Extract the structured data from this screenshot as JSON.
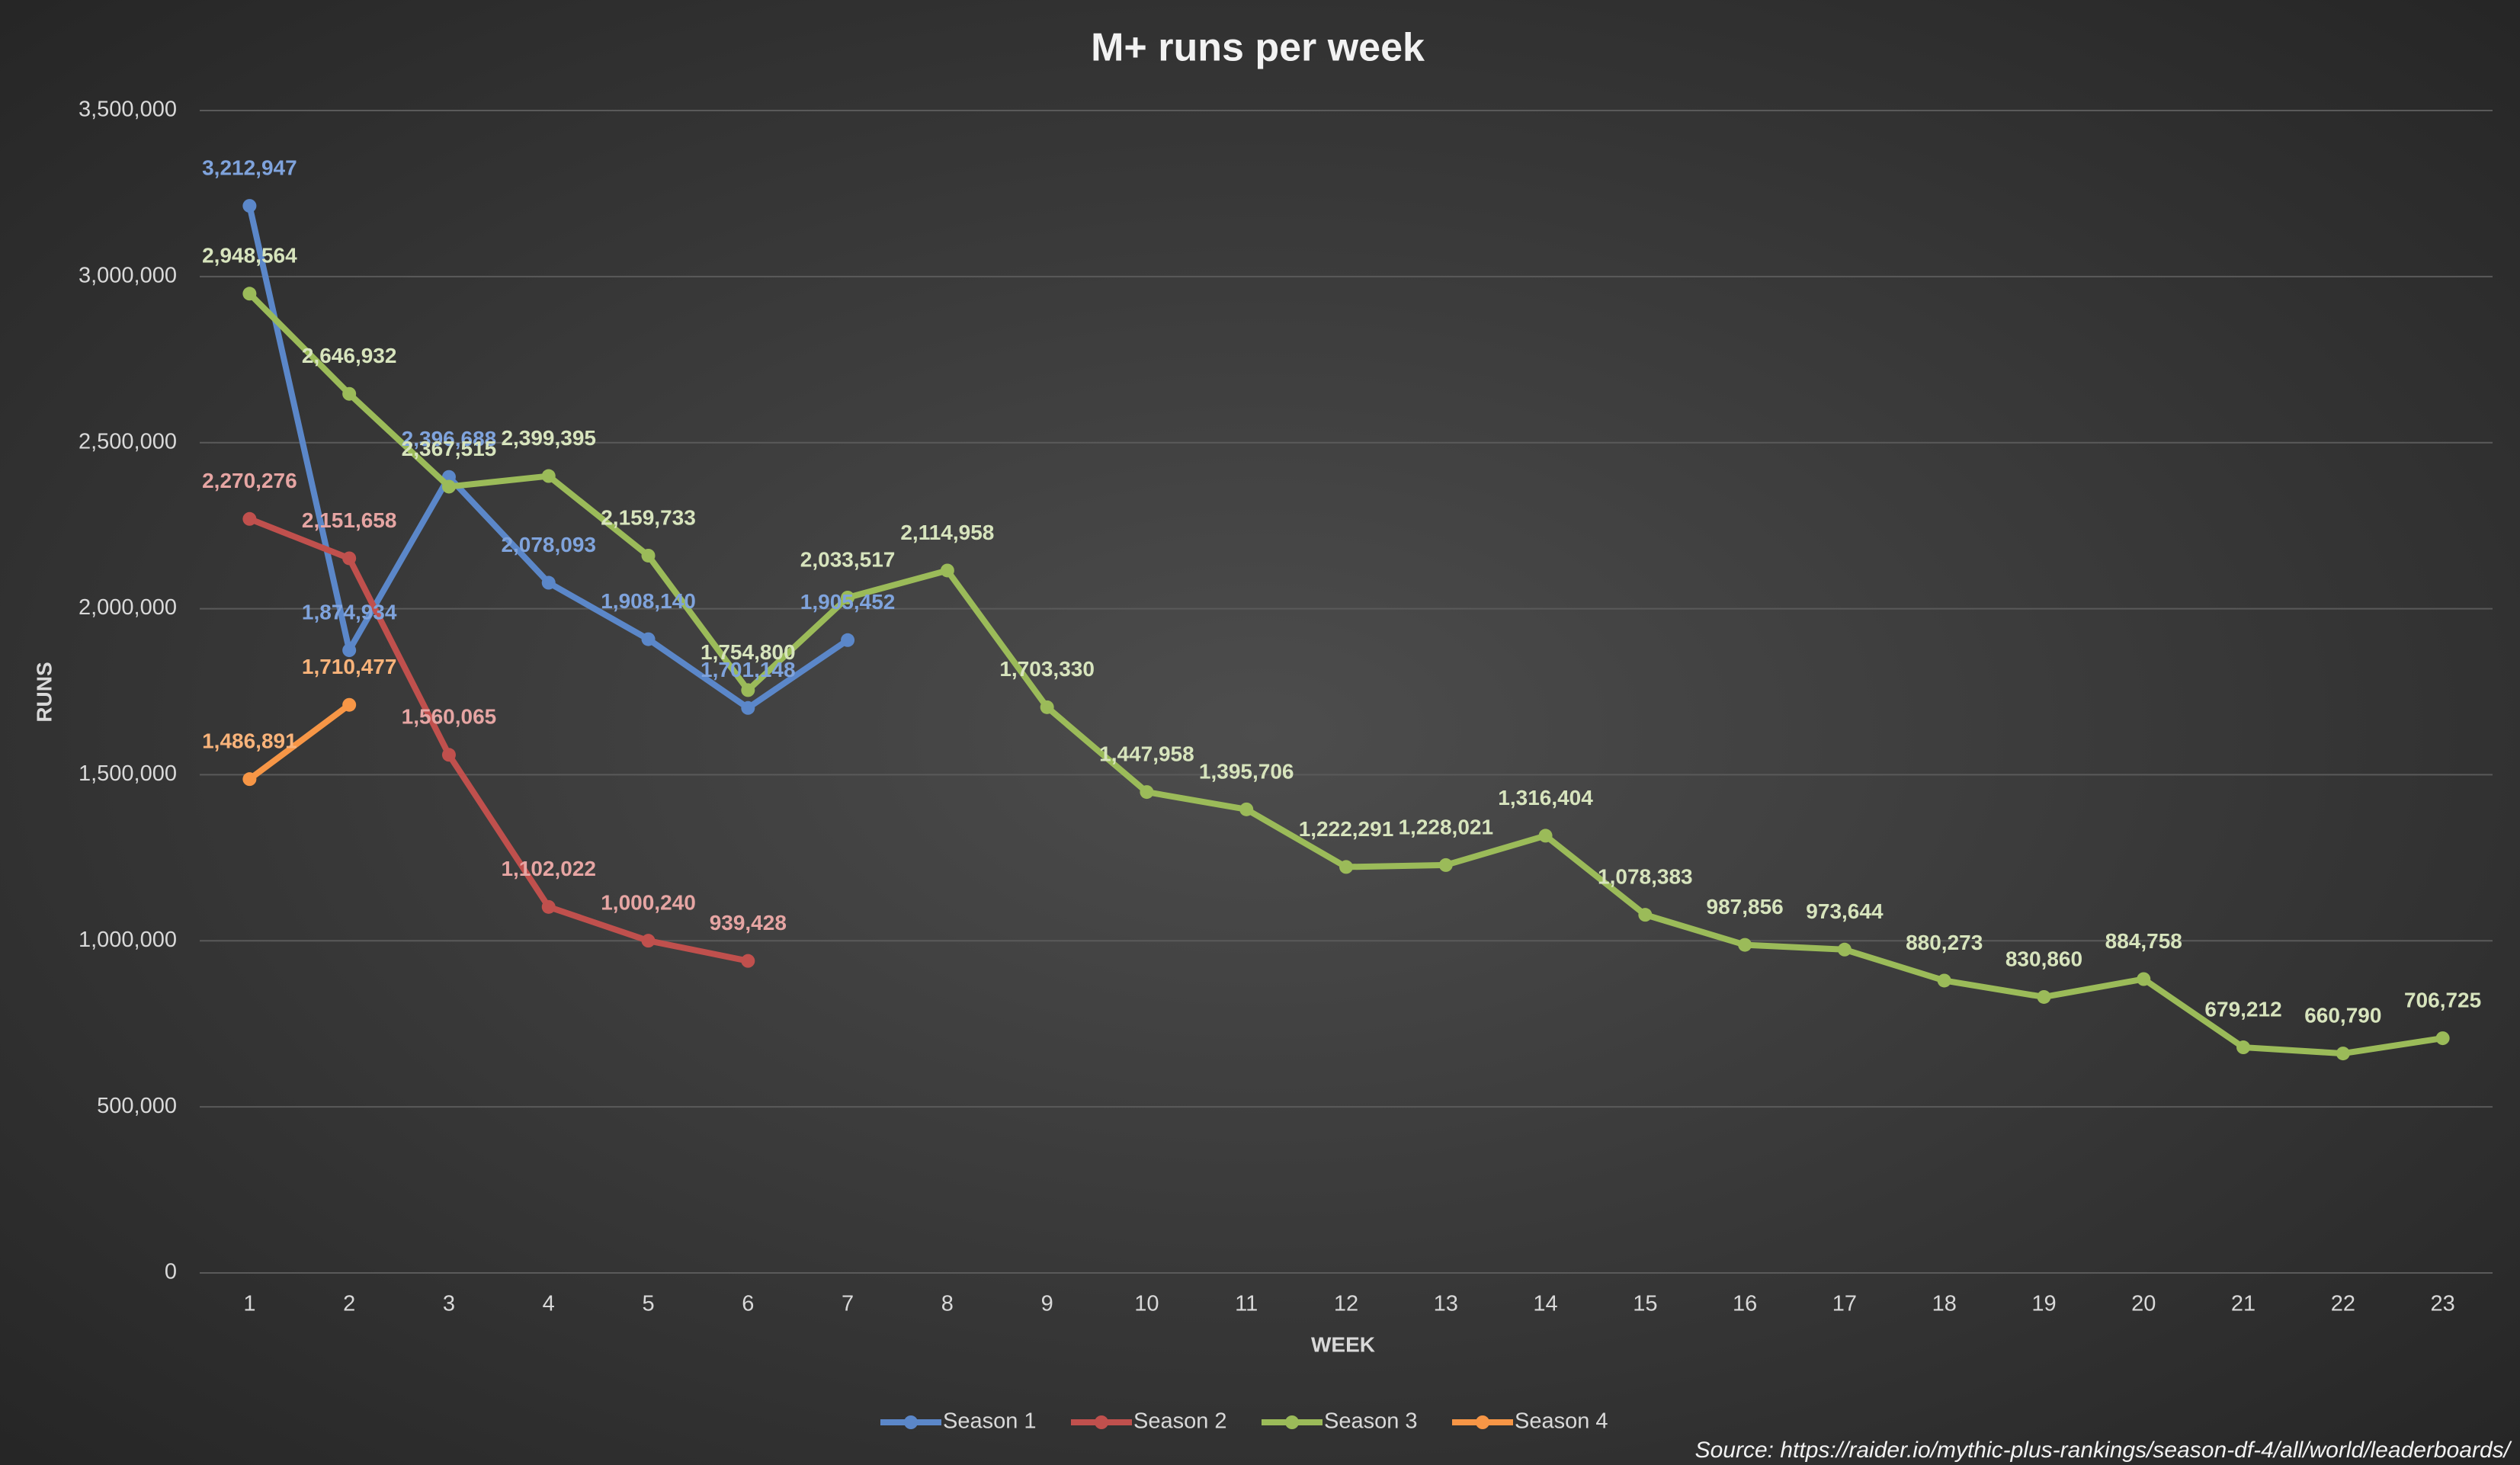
{
  "chart_data": {
    "type": "line",
    "title": "M+ runs per week",
    "x_label": "WEEK",
    "y_label": "RUNS",
    "source": "Source: https://raider.io/mythic-plus-rankings/season-df-4/all/world/leaderboards/",
    "categories": [
      "1",
      "2",
      "3",
      "4",
      "5",
      "6",
      "7",
      "8",
      "9",
      "10",
      "11",
      "12",
      "13",
      "14",
      "15",
      "16",
      "17",
      "18",
      "19",
      "20",
      "21",
      "22",
      "23"
    ],
    "ylim": [
      0,
      3500000
    ],
    "yticks": [
      0,
      {
        "value": 500000,
        "label": "500,000"
      },
      {
        "value": 1000000,
        "label": "1,000,000"
      },
      {
        "value": 1500000,
        "label": "1,500,000"
      },
      {
        "value": 2000000,
        "label": "2,000,000"
      },
      {
        "value": 2500000,
        "label": "2,500,000"
      },
      {
        "value": 3000000,
        "label": "3,000,000"
      },
      {
        "value": 3500000,
        "label": "3,500,000"
      }
    ],
    "grid": true,
    "legend": "bottom",
    "series": [
      {
        "name": "Season 1",
        "color": "#5b87c9",
        "label_color": "#7fa3dc",
        "values": [
          3212947,
          1874934,
          2396688,
          2078093,
          1908140,
          1701148,
          1905452,
          null,
          null,
          null,
          null,
          null,
          null,
          null,
          null,
          null,
          null,
          null,
          null,
          null,
          null,
          null,
          null
        ],
        "value_labels": [
          "3,212,947",
          "1,874,934",
          "2,396,688",
          "2,078,093",
          "1,908,140",
          "1,701,148",
          "1,905,452",
          null,
          null,
          null,
          null,
          null,
          null,
          null,
          null,
          null,
          null,
          null,
          null,
          null,
          null,
          null,
          null
        ]
      },
      {
        "name": "Season 2",
        "color": "#c0504d",
        "label_color": "#e6a5a3",
        "values": [
          2270276,
          2151658,
          1560065,
          1102022,
          1000240,
          939428,
          null,
          null,
          null,
          null,
          null,
          null,
          null,
          null,
          null,
          null,
          null,
          null,
          null,
          null,
          null,
          null,
          null
        ],
        "value_labels": [
          "2,270,276",
          "2,151,658",
          "1,560,065",
          "1,102,022",
          "1,000,240",
          "939,428",
          null,
          null,
          null,
          null,
          null,
          null,
          null,
          null,
          null,
          null,
          null,
          null,
          null,
          null,
          null,
          null,
          null
        ]
      },
      {
        "name": "Season 3",
        "color": "#9bbb59",
        "label_color": "#d7e4bd",
        "values": [
          2948564,
          2646932,
          2367515,
          2399395,
          2159733,
          1754800,
          2033517,
          2114958,
          1703330,
          1447958,
          1395706,
          1222291,
          1228021,
          1316404,
          1078383,
          987856,
          973644,
          880273,
          830860,
          884758,
          679212,
          660790,
          706725
        ],
        "value_labels": [
          "2,948,564",
          "2,646,932",
          "2,367,515",
          "2,399,395",
          "2,159,733",
          "1,754,800",
          "2,033,517",
          "2,114,958",
          "1,703,330",
          "1,447,958",
          "1,395,706",
          "1,222,291",
          "1,228,021",
          "1,316,404",
          "1,078,383",
          "987,856",
          "973,644",
          "880,273",
          "830,860",
          "884,758",
          "679,212",
          "660,790",
          "706,725"
        ]
      },
      {
        "name": "Season 4",
        "color": "#f79646",
        "label_color": "#f9b37a",
        "values": [
          1486891,
          1710477,
          null,
          null,
          null,
          null,
          null,
          null,
          null,
          null,
          null,
          null,
          null,
          null,
          null,
          null,
          null,
          null,
          null,
          null,
          null,
          null,
          null
        ],
        "value_labels": [
          "1,486,891",
          "1,710,477",
          null,
          null,
          null,
          null,
          null,
          null,
          null,
          null,
          null,
          null,
          null,
          null,
          null,
          null,
          null,
          null,
          null,
          null,
          null,
          null,
          null
        ]
      }
    ]
  }
}
